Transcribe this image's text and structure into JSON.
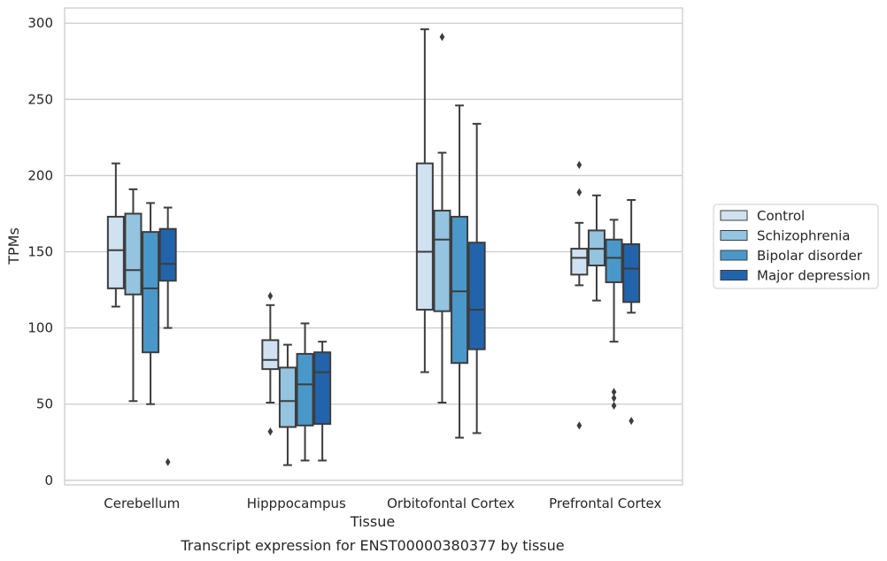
{
  "caption": "Transcript expression for ENST00000380377 by tissue",
  "chart_data": {
    "type": "box",
    "xlabel": "Tissue",
    "ylabel": "TPMs",
    "ylim": [
      -3,
      310
    ],
    "yticks": [
      0,
      50,
      100,
      150,
      200,
      250,
      300
    ],
    "grid": "horizontal",
    "legend_placement": "right",
    "categories": [
      "Cerebellum",
      "Hipppocampus",
      "Orbitofontal Cortex",
      "Prefrontal Cortex"
    ],
    "series": [
      {
        "name": "Control",
        "color": "#d0e1f2",
        "boxes": [
          {
            "whisker_low": 114,
            "q1": 126,
            "median": 151,
            "q3": 173,
            "whisker_high": 208,
            "outliers": []
          },
          {
            "whisker_low": 51,
            "q1": 73,
            "median": 79,
            "q3": 92,
            "whisker_high": 115,
            "outliers": [
              121,
              32
            ]
          },
          {
            "whisker_low": 71,
            "q1": 112,
            "median": 150,
            "q3": 208,
            "whisker_high": 296,
            "outliers": []
          },
          {
            "whisker_low": 128,
            "q1": 135,
            "median": 146,
            "q3": 152,
            "whisker_high": 169,
            "outliers": [
              207,
              189,
              36
            ]
          }
        ]
      },
      {
        "name": "Schizophrenia",
        "color": "#94c4df",
        "boxes": [
          {
            "whisker_low": 52,
            "q1": 122,
            "median": 138,
            "q3": 175,
            "whisker_high": 191,
            "outliers": []
          },
          {
            "whisker_low": 10,
            "q1": 35,
            "median": 52,
            "q3": 74,
            "whisker_high": 89,
            "outliers": []
          },
          {
            "whisker_low": 51,
            "q1": 111,
            "median": 158,
            "q3": 177,
            "whisker_high": 215,
            "outliers": [
              291
            ]
          },
          {
            "whisker_low": 118,
            "q1": 141,
            "median": 152,
            "q3": 164,
            "whisker_high": 187,
            "outliers": []
          }
        ]
      },
      {
        "name": "Bipolar disorder",
        "color": "#4a98c9",
        "boxes": [
          {
            "whisker_low": 50,
            "q1": 84,
            "median": 126,
            "q3": 163,
            "whisker_high": 182,
            "outliers": []
          },
          {
            "whisker_low": 13,
            "q1": 36,
            "median": 63,
            "q3": 83,
            "whisker_high": 103,
            "outliers": []
          },
          {
            "whisker_low": 28,
            "q1": 77,
            "median": 124,
            "q3": 173,
            "whisker_high": 246,
            "outliers": []
          },
          {
            "whisker_low": 91,
            "q1": 130,
            "median": 146,
            "q3": 158,
            "whisker_high": 171,
            "outliers": [
              58,
              54,
              49
            ]
          }
        ]
      },
      {
        "name": "Major depression",
        "color": "#2164ab",
        "boxes": [
          {
            "whisker_low": 100,
            "q1": 131,
            "median": 142,
            "q3": 165,
            "whisker_high": 179,
            "outliers": [
              12
            ]
          },
          {
            "whisker_low": 13,
            "q1": 37,
            "median": 71,
            "q3": 84,
            "whisker_high": 91,
            "outliers": []
          },
          {
            "whisker_low": 31,
            "q1": 86,
            "median": 112,
            "q3": 156,
            "whisker_high": 234,
            "outliers": []
          },
          {
            "whisker_low": 110,
            "q1": 117,
            "median": 139,
            "q3": 155,
            "whisker_high": 184,
            "outliers": [
              39
            ]
          }
        ]
      }
    ]
  }
}
